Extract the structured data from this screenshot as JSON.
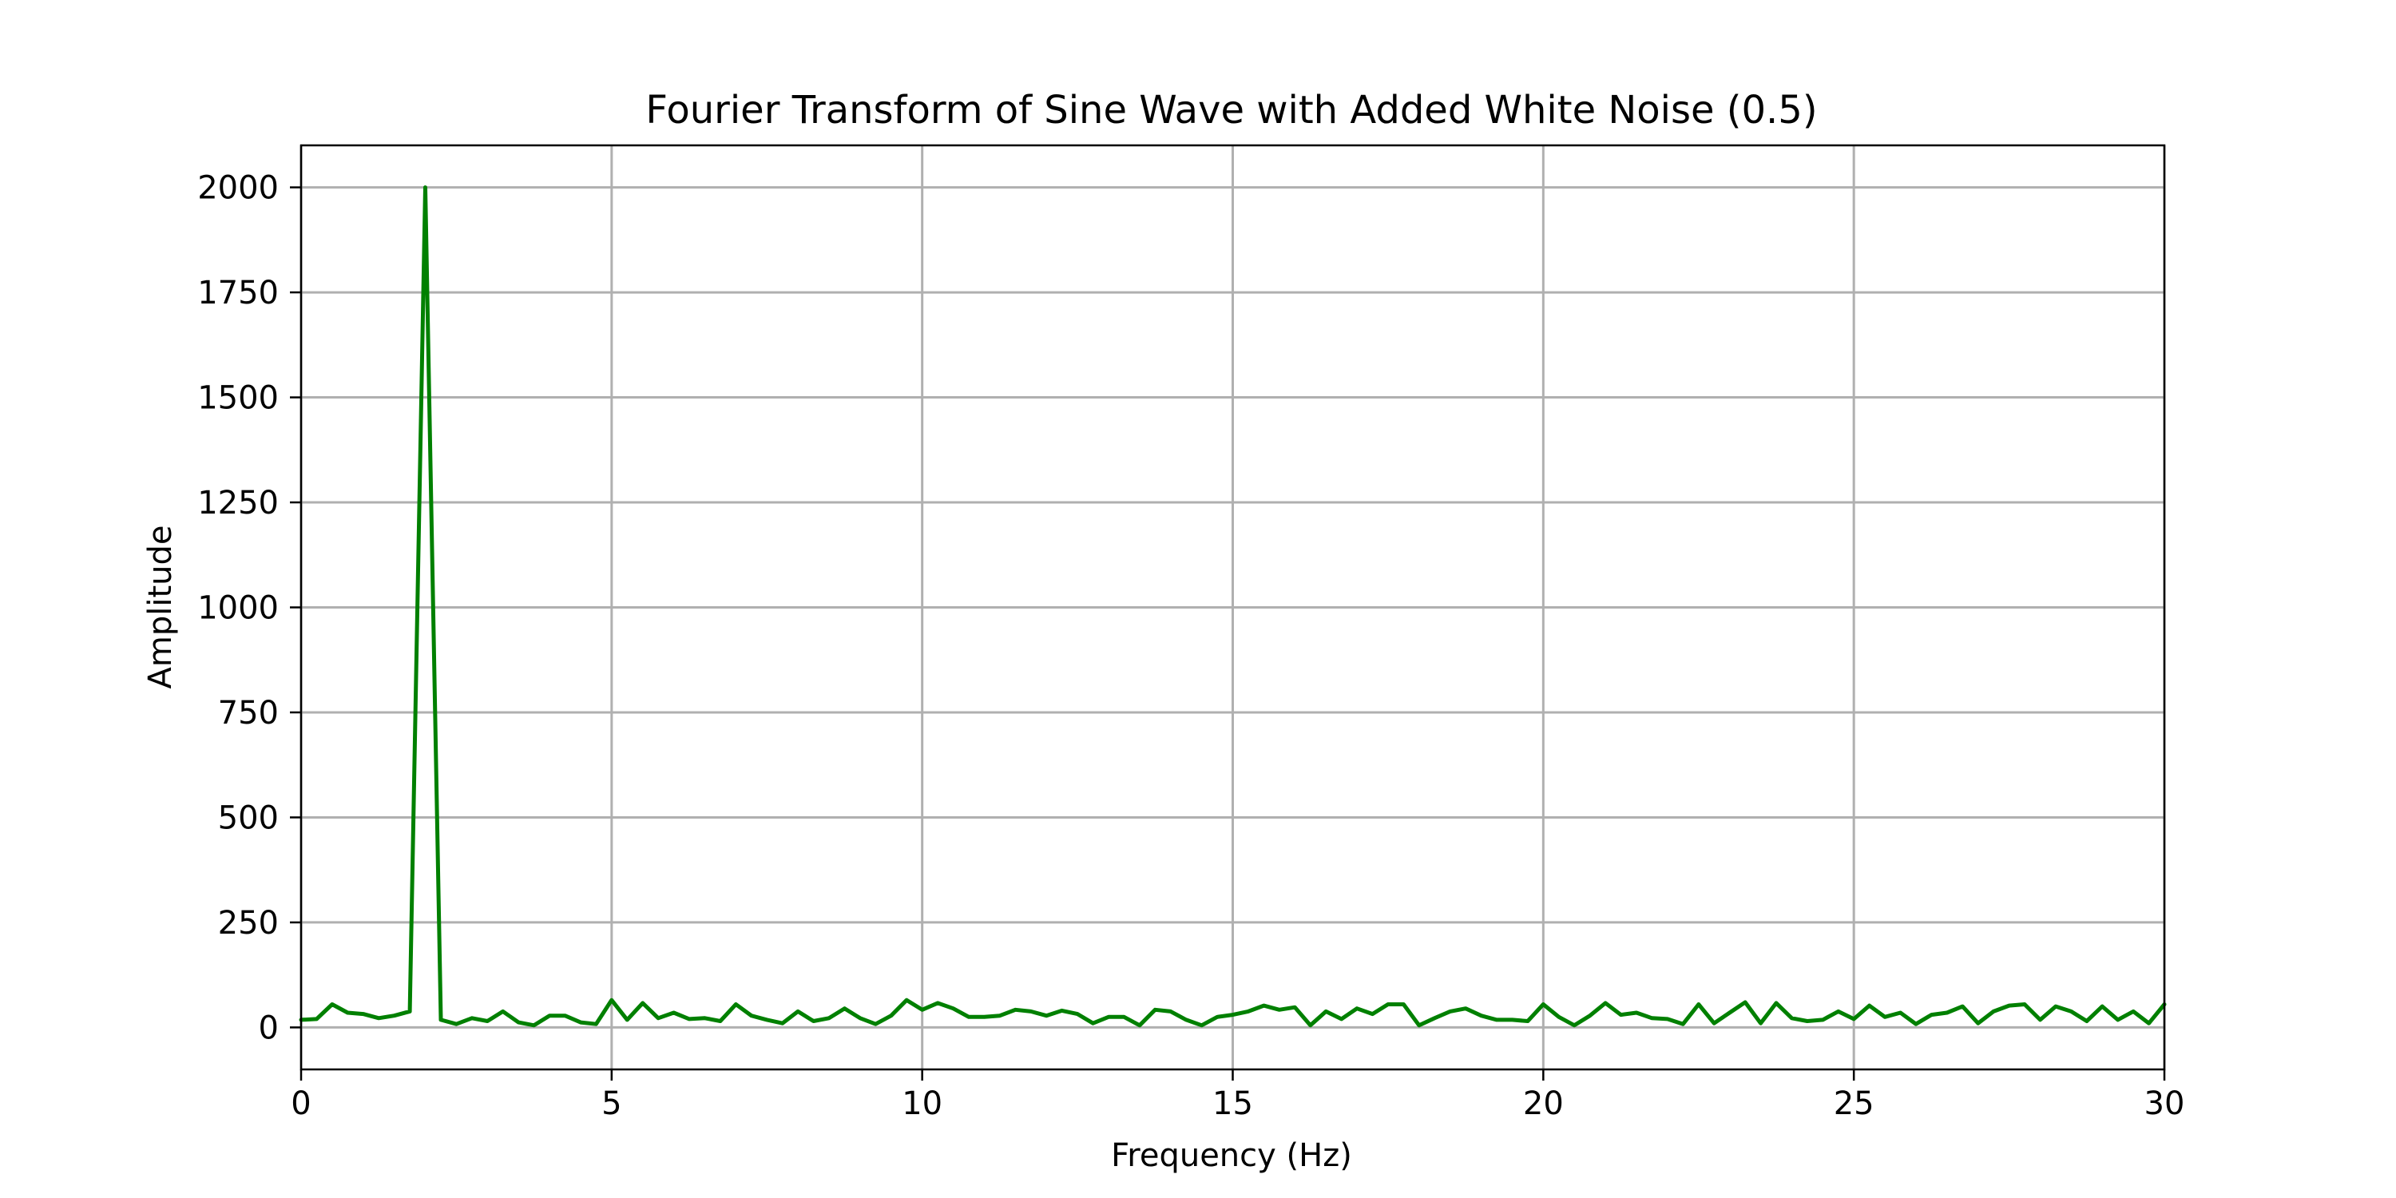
{
  "chart_data": {
    "type": "line",
    "title": "Fourier Transform of Sine Wave with Added White Noise (0.5)",
    "xlabel": "Frequency (Hz)",
    "ylabel": "Amplitude",
    "xlim": [
      0,
      30
    ],
    "ylim": [
      -100,
      2100
    ],
    "xticks": [
      0,
      5,
      10,
      15,
      20,
      25,
      30
    ],
    "yticks": [
      0,
      250,
      500,
      750,
      1000,
      1250,
      1500,
      1750,
      2000
    ],
    "grid": true,
    "line_color": "#008000",
    "series": [
      {
        "x": [
          0,
          0.25,
          0.5,
          0.75,
          1,
          1.25,
          1.5,
          1.75,
          2,
          2.25,
          2.5,
          2.75,
          3,
          3.25,
          3.5,
          3.75,
          4,
          4.25,
          4.5,
          4.75,
          5,
          5.25,
          5.5,
          5.75,
          6,
          6.25,
          6.5,
          6.75,
          7,
          7.25,
          7.5,
          7.75,
          8,
          8.25,
          8.5,
          8.75,
          9,
          9.25,
          9.5,
          9.75,
          10,
          10.25,
          10.5,
          10.75,
          11,
          11.25,
          11.5,
          11.75,
          12,
          12.25,
          12.5,
          12.75,
          13,
          13.25,
          13.5,
          13.75,
          14,
          14.25,
          14.5,
          14.75,
          15,
          15.25,
          15.5,
          15.75,
          16,
          16.25,
          16.5,
          16.75,
          17,
          17.25,
          17.5,
          17.75,
          18,
          18.25,
          18.5,
          18.75,
          19,
          19.25,
          19.5,
          19.75,
          20,
          20.25,
          20.5,
          20.75,
          21,
          21.25,
          21.5,
          21.75,
          22,
          22.25,
          22.5,
          22.75,
          23,
          23.25,
          23.5,
          23.75,
          24,
          24.25,
          24.5,
          24.75,
          25,
          25.25,
          25.5,
          25.75,
          26,
          26.25,
          26.5,
          26.75,
          27,
          27.25,
          27.5,
          27.75,
          28,
          28.25,
          28.5,
          28.75,
          29,
          29.25,
          29.5,
          29.75,
          30
        ],
        "values": [
          18,
          20,
          55,
          35,
          32,
          22,
          28,
          38,
          2000,
          18,
          8,
          22,
          15,
          38,
          12,
          5,
          28,
          28,
          12,
          8,
          65,
          18,
          58,
          22,
          35,
          20,
          22,
          15,
          55,
          28,
          18,
          10,
          38,
          15,
          22,
          45,
          22,
          8,
          28,
          65,
          42,
          58,
          45,
          25,
          25,
          28,
          42,
          38,
          28,
          40,
          32,
          10,
          25,
          25,
          5,
          42,
          38,
          18,
          5,
          25,
          30,
          38,
          52,
          42,
          48,
          5,
          38,
          20,
          45,
          32,
          55,
          55,
          5,
          22,
          38,
          45,
          28,
          18,
          18,
          15,
          55,
          25,
          5,
          28,
          58,
          30,
          35,
          22,
          20,
          8,
          55,
          10,
          35,
          60,
          10,
          58,
          22,
          15,
          18,
          38,
          20,
          52,
          25,
          35,
          8,
          30,
          35,
          50,
          10,
          38,
          52,
          55,
          18,
          50,
          38,
          15,
          50,
          18,
          38,
          10,
          55
        ]
      }
    ]
  }
}
